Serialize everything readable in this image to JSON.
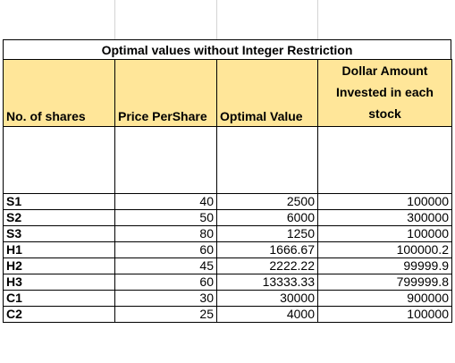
{
  "title": "Optimal values without Integer Restriction",
  "headers": {
    "shares": "No. of shares",
    "price": "Price PerShare",
    "optimal": "Optimal Value",
    "dollar": "Dollar Amount Invested in each stock"
  },
  "header_fill_color": "#FFE699",
  "rows": [
    {
      "label": "S1",
      "price": "40",
      "optimal": "2500",
      "dollar": "100000"
    },
    {
      "label": "S2",
      "price": "50",
      "optimal": "6000",
      "dollar": "300000"
    },
    {
      "label": "S3",
      "price": "80",
      "optimal": "1250",
      "dollar": "100000"
    },
    {
      "label": "H1",
      "price": "60",
      "optimal": "1666.67",
      "dollar": "100000.2"
    },
    {
      "label": "H2",
      "price": "45",
      "optimal": "2222.22",
      "dollar": "99999.9"
    },
    {
      "label": "H3",
      "price": "60",
      "optimal": "13333.33",
      "dollar": "799999.8"
    },
    {
      "label": "C1",
      "price": "30",
      "optimal": "30000",
      "dollar": "900000"
    },
    {
      "label": "C2",
      "price": "25",
      "optimal": "4000",
      "dollar": "100000"
    }
  ]
}
